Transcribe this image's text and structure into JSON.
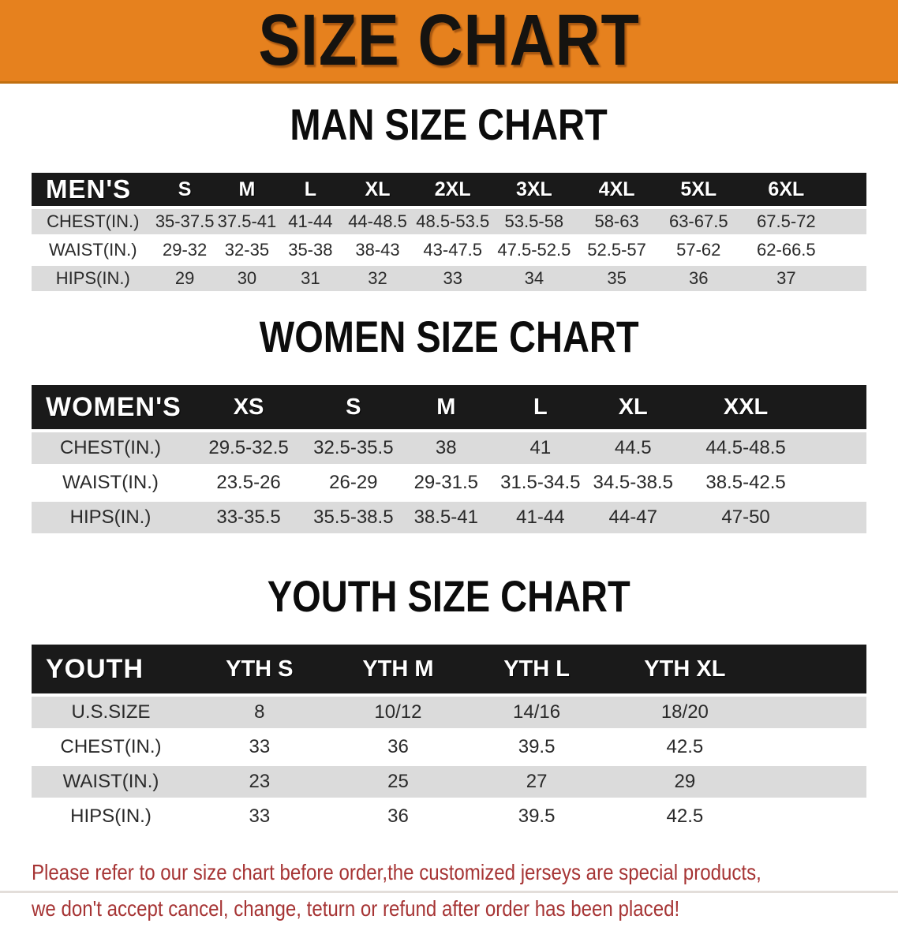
{
  "banner": {
    "title": "SIZE CHART"
  },
  "chart_data": [
    {
      "type": "table",
      "title": "MAN SIZE CHART",
      "header": [
        "MEN'S",
        "S",
        "M",
        "L",
        "XL",
        "2XL",
        "3XL",
        "4XL",
        "5XL",
        "6XL"
      ],
      "rows": [
        {
          "label": "CHEST(IN.)",
          "values": [
            "35-37.5",
            "37.5-41",
            "41-44",
            "44-48.5",
            "48.5-53.5",
            "53.5-58",
            "58-63",
            "63-67.5",
            "67.5-72"
          ]
        },
        {
          "label": "WAIST(IN.)",
          "values": [
            "29-32",
            "32-35",
            "35-38",
            "38-43",
            "43-47.5",
            "47.5-52.5",
            "52.5-57",
            "57-62",
            "62-66.5"
          ]
        },
        {
          "label": "HIPS(IN.)",
          "values": [
            "29",
            "30",
            "31",
            "32",
            "33",
            "34",
            "35",
            "36",
            "37"
          ]
        }
      ]
    },
    {
      "type": "table",
      "title": "WOMEN SIZE CHART",
      "header": [
        "WOMEN'S",
        "XS",
        "S",
        "M",
        "L",
        "XL",
        "XXL"
      ],
      "rows": [
        {
          "label": "CHEST(IN.)",
          "values": [
            "29.5-32.5",
            "32.5-35.5",
            "38",
            "41",
            "44.5",
            "44.5-48.5"
          ]
        },
        {
          "label": "WAIST(IN.)",
          "values": [
            "23.5-26",
            "26-29",
            "29-31.5",
            "31.5-34.5",
            "34.5-38.5",
            "38.5-42.5"
          ]
        },
        {
          "label": "HIPS(IN.)",
          "values": [
            "33-35.5",
            "35.5-38.5",
            "38.5-41",
            "41-44",
            "44-47",
            "47-50"
          ]
        }
      ]
    },
    {
      "type": "table",
      "title": "YOUTH SIZE CHART",
      "header": [
        "YOUTH",
        "YTH S",
        "YTH M",
        "YTH L",
        "YTH XL"
      ],
      "rows": [
        {
          "label": "U.S.SIZE",
          "values": [
            "8",
            "10/12",
            "14/16",
            "18/20"
          ]
        },
        {
          "label": "CHEST(IN.)",
          "values": [
            "33",
            "36",
            "39.5",
            "42.5"
          ]
        },
        {
          "label": "WAIST(IN.)",
          "values": [
            "23",
            "25",
            "27",
            "29"
          ]
        },
        {
          "label": "HIPS(IN.)",
          "values": [
            "33",
            "36",
            "39.5",
            "42.5"
          ]
        }
      ]
    }
  ],
  "disclaimer": {
    "line1": "Please refer to our size chart before order,the customized jerseys are special products,",
    "line2": "we don't accept cancel, change, teturn or refund after order has been placed!"
  },
  "colors": {
    "banner_bg": "#E6811E",
    "banner_border": "#C06F10",
    "banner_text": "#151310",
    "bar_bg": "#1A1A1A",
    "bar_text": "#FFFFFF",
    "stripe": "#DBDBDB",
    "value_text": "#2A2A2A",
    "disclaimer_text": "#A63434"
  }
}
